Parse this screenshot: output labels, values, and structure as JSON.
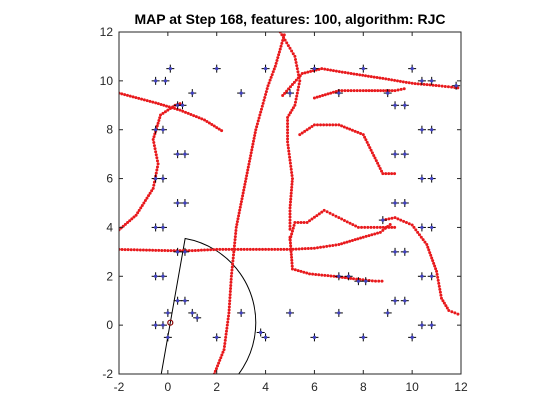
{
  "chart_data": {
    "type": "scatter",
    "title": "MAP at Step 168, features: 100, algorithm: RJC",
    "xlim": [
      -2,
      12
    ],
    "ylim": [
      -2,
      12
    ],
    "xticks": [
      "-2",
      "0",
      "2",
      "4",
      "6",
      "8",
      "10",
      "12"
    ],
    "yticks": [
      "-2",
      "0",
      "2",
      "4",
      "6",
      "8",
      "10",
      "12"
    ],
    "grid": false,
    "legend": "none",
    "colors": {
      "trajectory": "#e8191c",
      "feature_plus": "#000000",
      "feature_dot": "#4040c0",
      "sensor_arc": "#000000",
      "robot": "#8b0000"
    },
    "features": [
      [
        -0.5,
        10
      ],
      [
        -0.1,
        10
      ],
      [
        0.1,
        10.5
      ],
      [
        1,
        9.5
      ],
      [
        0.4,
        9
      ],
      [
        0.6,
        9
      ],
      [
        2,
        10.5
      ],
      [
        3,
        9.5
      ],
      [
        4,
        10.5
      ],
      [
        5,
        9.5
      ],
      [
        6,
        10.5
      ],
      [
        7,
        9.5
      ],
      [
        8,
        10.5
      ],
      [
        9,
        9.5
      ],
      [
        10,
        10.5
      ],
      [
        10.4,
        10
      ],
      [
        10.8,
        10
      ],
      [
        9.3,
        9
      ],
      [
        9.7,
        9
      ],
      [
        11.8,
        9.8
      ],
      [
        -0.5,
        8
      ],
      [
        -0.2,
        8
      ],
      [
        10.4,
        8
      ],
      [
        10.8,
        8
      ],
      [
        0.4,
        7
      ],
      [
        0.7,
        7
      ],
      [
        9.3,
        7
      ],
      [
        9.7,
        7
      ],
      [
        -0.5,
        6
      ],
      [
        -0.2,
        6
      ],
      [
        10.4,
        6
      ],
      [
        10.8,
        6
      ],
      [
        0.4,
        5
      ],
      [
        0.7,
        5
      ],
      [
        9.3,
        5
      ],
      [
        9.7,
        5
      ],
      [
        -0.5,
        4
      ],
      [
        -0.2,
        4
      ],
      [
        8.8,
        4.3
      ],
      [
        10.4,
        4
      ],
      [
        10.8,
        4
      ],
      [
        0.4,
        3
      ],
      [
        0.7,
        3
      ],
      [
        9.3,
        3
      ],
      [
        9.7,
        3
      ],
      [
        -0.5,
        2
      ],
      [
        -0.2,
        2
      ],
      [
        7,
        2
      ],
      [
        7.4,
        2
      ],
      [
        7.8,
        1.8
      ],
      [
        8.1,
        1.8
      ],
      [
        10.4,
        2
      ],
      [
        10.8,
        2
      ],
      [
        0.4,
        1
      ],
      [
        0.7,
        1
      ],
      [
        9.3,
        1
      ],
      [
        9.7,
        1
      ],
      [
        -0.5,
        0
      ],
      [
        -0.2,
        0
      ],
      [
        0,
        0.5
      ],
      [
        10.4,
        0
      ],
      [
        10.8,
        0
      ],
      [
        1,
        0.5
      ],
      [
        2,
        -0.5
      ],
      [
        3,
        0.5
      ],
      [
        4,
        -0.5
      ],
      [
        5,
        0.5
      ],
      [
        6,
        -0.5
      ],
      [
        7,
        0.5
      ],
      [
        8,
        -0.5
      ],
      [
        9,
        0.5
      ],
      [
        10,
        -0.5
      ],
      [
        0,
        -0.5
      ],
      [
        1.2,
        0.3
      ],
      [
        3.8,
        -0.3
      ]
    ],
    "trajectories": [
      [
        [
          -2,
          9.5
        ],
        [
          -0.5,
          9.1
        ],
        [
          0.5,
          8.8
        ],
        [
          1.5,
          8.4
        ],
        [
          2.3,
          7.9
        ]
      ],
      [
        [
          -2,
          3.9
        ],
        [
          -1.3,
          4.5
        ],
        [
          -0.6,
          5.6
        ],
        [
          -0.4,
          6.6
        ],
        [
          -0.6,
          7.6
        ],
        [
          -0.3,
          8.6
        ],
        [
          0.3,
          9.0
        ],
        [
          0.6,
          9.1
        ]
      ],
      [
        [
          -2,
          3.1
        ],
        [
          0,
          3.05
        ],
        [
          1,
          3.05
        ],
        [
          2,
          3.1
        ],
        [
          3,
          3.1
        ],
        [
          4,
          3.1
        ],
        [
          5,
          3.1
        ],
        [
          6,
          3.15
        ],
        [
          7,
          3.3
        ],
        [
          8,
          3.6
        ],
        [
          8.7,
          3.8
        ],
        [
          9.2,
          4.2
        ]
      ],
      [
        [
          1.9,
          -2
        ],
        [
          2.3,
          -1
        ],
        [
          2.5,
          0.5
        ],
        [
          2.6,
          2
        ],
        [
          2.8,
          4
        ],
        [
          3.2,
          6
        ],
        [
          3.6,
          8
        ],
        [
          4.1,
          9.8
        ],
        [
          4.4,
          10.6
        ],
        [
          4.8,
          12
        ]
      ],
      [
        [
          4.6,
          12
        ],
        [
          5.2,
          11
        ],
        [
          5.4,
          10
        ],
        [
          5.2,
          9
        ],
        [
          4.9,
          8.5
        ],
        [
          4.9,
          7.5
        ],
        [
          5.1,
          6
        ],
        [
          5.0,
          4.8
        ],
        [
          5.0,
          3.8
        ]
      ],
      [
        [
          4.7,
          9.4
        ],
        [
          5.5,
          10.3
        ],
        [
          6.3,
          10.5
        ],
        [
          7.5,
          10.3
        ],
        [
          8.8,
          10.1
        ],
        [
          10,
          9.9
        ],
        [
          11.1,
          9.8
        ],
        [
          12,
          9.7
        ]
      ],
      [
        [
          6.0,
          9.3
        ],
        [
          7,
          9.6
        ],
        [
          8,
          9.6
        ],
        [
          9.3,
          9.6
        ],
        [
          9.8,
          9.7
        ]
      ],
      [
        [
          5.4,
          7.8
        ],
        [
          6,
          8.2
        ],
        [
          7,
          8.2
        ],
        [
          8,
          7.8
        ],
        [
          8.8,
          6.2
        ],
        [
          9.4,
          6.2
        ]
      ],
      [
        [
          5.0,
          3.5
        ],
        [
          5.2,
          4.2
        ],
        [
          5.7,
          4.2
        ],
        [
          6.4,
          4.7
        ],
        [
          7,
          4.4
        ],
        [
          7.8,
          4.0
        ],
        [
          8.7,
          4.0
        ],
        [
          9.4,
          4.0
        ]
      ],
      [
        [
          5.0,
          3.6
        ],
        [
          5.1,
          2.3
        ],
        [
          5.8,
          2.1
        ],
        [
          6.8,
          2.0
        ],
        [
          7.6,
          1.9
        ],
        [
          8.5,
          1.8
        ],
        [
          8.9,
          1.8
        ]
      ],
      [
        [
          8.8,
          4.3
        ],
        [
          9.3,
          4.4
        ],
        [
          10,
          4.1
        ],
        [
          10.6,
          3.3
        ],
        [
          11,
          2.2
        ],
        [
          11.2,
          1.1
        ],
        [
          11.5,
          0.6
        ],
        [
          12,
          0.4
        ]
      ]
    ],
    "robot": [
      0.1,
      0.1
    ],
    "sensor_range": 3.5,
    "sensor_angles_deg": [
      -100,
      80
    ]
  }
}
